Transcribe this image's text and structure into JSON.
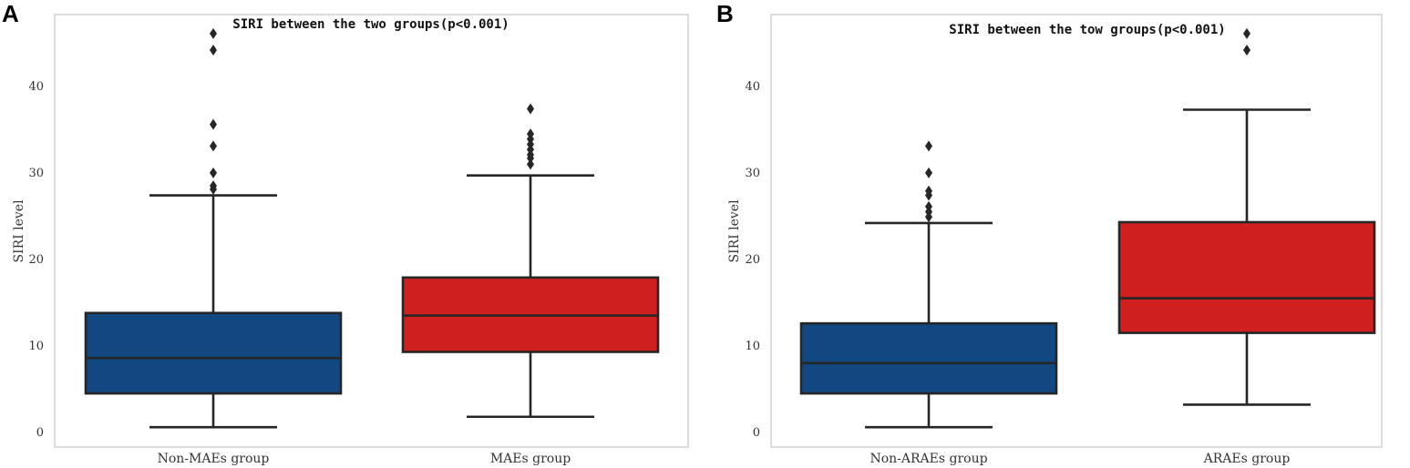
{
  "chart_data": [
    {
      "panel": "A",
      "type": "box",
      "title": "SIRI between the two groups(p<0.001)",
      "ylabel": "SIRI level",
      "xlabel": "",
      "ylim": [
        -1.8,
        48.2
      ],
      "yticks": [
        0,
        10,
        20,
        30,
        40
      ],
      "grid": false,
      "groups": [
        {
          "name": "Non-MAEs group",
          "color": "#114882",
          "whisker_low": 0.5,
          "q1": 4.4,
          "median": 8.5,
          "q3": 13.7,
          "whisker_high": 27.3,
          "outliers": [
            28.0,
            28.4,
            29.9,
            33.0,
            35.5,
            44.1,
            46.0
          ]
        },
        {
          "name": "MAEs group",
          "color": "#d01f1f",
          "whisker_low": 1.7,
          "q1": 9.2,
          "median": 13.4,
          "q3": 17.8,
          "whisker_high": 29.6,
          "outliers": [
            30.9,
            31.6,
            32.0,
            32.6,
            33.2,
            33.8,
            34.4,
            37.3
          ]
        }
      ]
    },
    {
      "panel": "B",
      "type": "box",
      "title": "SIRI between the tow groups(p<0.001)",
      "ylabel": "SIRI level",
      "xlabel": "",
      "ylim": [
        -1.8,
        48.2
      ],
      "yticks": [
        0,
        10,
        20,
        30,
        40
      ],
      "grid": false,
      "groups": [
        {
          "name": "Non-ARAEs group",
          "color": "#114882",
          "whisker_low": 0.5,
          "q1": 4.4,
          "median": 7.9,
          "q3": 12.5,
          "whisker_high": 24.1,
          "outliers": [
            24.8,
            25.4,
            26.0,
            27.3,
            27.8,
            29.9,
            33.0
          ]
        },
        {
          "name": "ARAEs group",
          "color": "#d01f1f",
          "whisker_low": 3.1,
          "q1": 11.4,
          "median": 15.4,
          "q3": 24.2,
          "whisker_high": 37.2,
          "outliers": [
            44.1,
            46.0
          ]
        }
      ]
    }
  ]
}
